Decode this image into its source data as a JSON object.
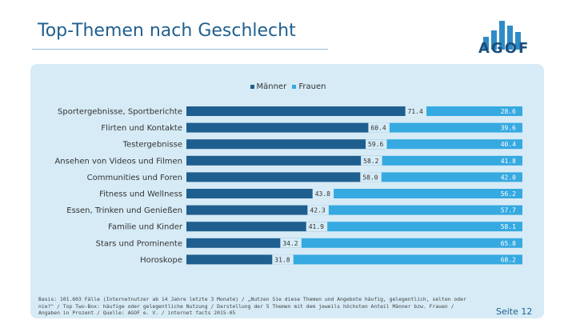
{
  "title": "Top-Themen nach Geschlecht",
  "logo": {
    "text": "AGOF",
    "color": "#1b4f7a",
    "bar_color": "#2e8bc7"
  },
  "colors": {
    "maenner": "#1f5f8f",
    "frauen": "#36a9e1",
    "panel": "#d6ebf6",
    "title": "#1f5f8f"
  },
  "footnote": [
    "Basis: 101.603 Fälle (Internetnutzer ab 14 Jahre letzte 3 Monate) / „Nutzen Sie diese Themen und Angebote häufig, gelegentlich, selten oder",
    "nie?\" / Top Two-Box: häufige oder gelegentliche Nutzung / Darstellung der 5 Themen mit dem jeweils höchsten Anteil Männer bzw. Frauen /",
    "Angaben in Prozent / Quelle: AGOF e. V. / internet facts 2015-05"
  ],
  "page_number": "Seite 12",
  "chart_data": {
    "type": "bar",
    "orientation": "horizontal",
    "stacked": true,
    "categories": [
      "Sportergebnisse, Sportberichte",
      "Flirten und Kontakte",
      "Testergebnisse",
      "Ansehen von Videos und Filmen",
      "Communities und Foren",
      "Fitness und Wellness",
      "Essen, Trinken und Genießen",
      "Familie und Kinder",
      "Stars und Prominente",
      "Horoskope"
    ],
    "series": [
      {
        "name": "Männer",
        "values": [
          71.4,
          60.4,
          59.6,
          58.2,
          58.0,
          43.8,
          42.3,
          41.9,
          34.2,
          31.8
        ]
      },
      {
        "name": "Frauen",
        "values": [
          28.6,
          39.6,
          40.4,
          41.8,
          42.0,
          56.2,
          57.7,
          58.1,
          65.8,
          68.2
        ]
      }
    ],
    "value_labels": {
      "maenner": [
        "71.4",
        "60.4",
        "59.6",
        "58.2",
        "58.0",
        "43.8",
        "42.3",
        "41.9",
        "34.2",
        "31.8"
      ],
      "frauen": [
        "28.6",
        "39.6",
        "40.4",
        "41.8",
        "42.0",
        "56.2",
        "57.7",
        "58.1",
        "65.8",
        "68.2"
      ]
    },
    "xlim": [
      0,
      100
    ],
    "legend_position": "top-center",
    "grid": false
  }
}
